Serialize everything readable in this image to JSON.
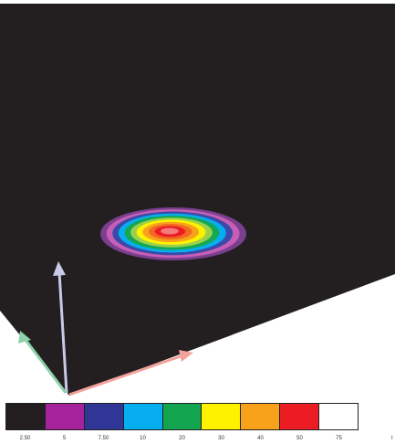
{
  "colormap": {
    "colors": [
      "#231f20",
      "#a4229b",
      "#2f3695",
      "#06aeef",
      "#12a44f",
      "#fff200",
      "#f8a21c",
      "#ec1c24",
      "#ffffff"
    ],
    "labels": [
      "2.50",
      "5",
      "7.50",
      "10",
      "20",
      "30",
      "40",
      "50",
      "75"
    ],
    "end_label": "I"
  },
  "scene": {
    "background": "#231f20",
    "blob_rings": [
      "#7a3f8f",
      "#c65fb5",
      "#3b4aa8",
      "#06aeef",
      "#14a854",
      "#9bd14a",
      "#fff200",
      "#f8a21c",
      "#f26a22",
      "#ec1c24",
      "#f47c7c"
    ],
    "axes": [
      {
        "name": "z-axis",
        "color": "#c9c9e8"
      },
      {
        "name": "x-axis",
        "color": "#f2a39a"
      },
      {
        "name": "y-axis",
        "color": "#8fd1a8"
      }
    ]
  }
}
